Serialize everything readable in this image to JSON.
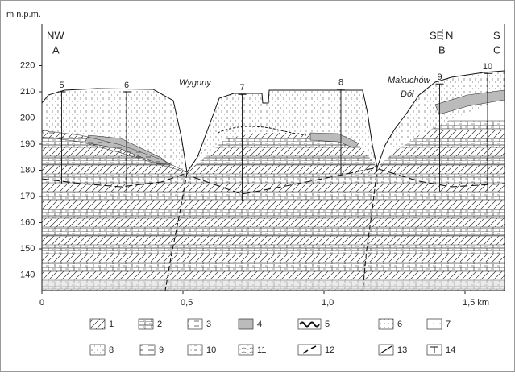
{
  "axis": {
    "unit_label": "m n.p.m.",
    "ylim": [
      134,
      234
    ],
    "yticks": [
      140,
      150,
      160,
      170,
      180,
      190,
      200,
      210,
      220
    ],
    "xlim": [
      0,
      1.64
    ],
    "xticks": [
      0,
      {
        "value": 0.5,
        "label": "0,5"
      },
      {
        "value": 1,
        "label": "1,0"
      },
      {
        "value": 1.5,
        "label": "1,5 km"
      }
    ]
  },
  "profile_labels": {
    "nw": "NW",
    "a": "A",
    "se": "SE",
    "n": "N",
    "b": "B",
    "s": "S",
    "c": "C"
  },
  "places": [
    "Wygony",
    "Makuchów",
    "Dół"
  ],
  "boreholes": [
    {
      "label": "5",
      "x": 0.07,
      "top": 210,
      "bottom": 175
    },
    {
      "label": "6",
      "x": 0.3,
      "top": 210,
      "bottom": 172
    },
    {
      "label": "7",
      "x": 0.71,
      "top": 209,
      "bottom": 168
    },
    {
      "label": "8",
      "x": 1.06,
      "top": 211,
      "bottom": 178
    },
    {
      "label": "9",
      "x": 1.41,
      "top": 213,
      "bottom": 172
    },
    {
      "label": "10",
      "x": 1.58,
      "top": 217,
      "bottom": 172
    }
  ],
  "legend": [
    "1",
    "2",
    "3",
    "4",
    "5",
    "6",
    "7",
    "8",
    "9",
    "10",
    "11",
    "12",
    "13",
    "14"
  ]
}
